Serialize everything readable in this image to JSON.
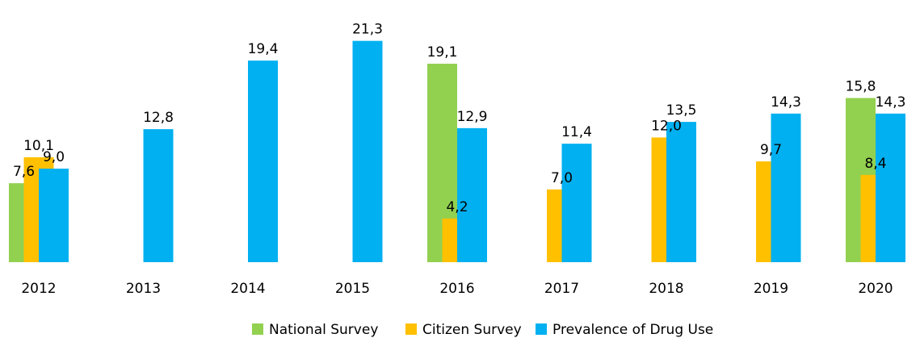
{
  "chart_data": {
    "type": "bar",
    "categories": [
      "2012",
      "2013",
      "2014",
      "2015",
      "2016",
      "2017",
      "2018",
      "2019",
      "2020"
    ],
    "series": [
      {
        "name": "National Survey",
        "color": "#92d050",
        "values": [
          7.6,
          null,
          null,
          null,
          19.1,
          null,
          null,
          null,
          15.8
        ],
        "value_labels": [
          "7,6",
          null,
          null,
          null,
          "19,1",
          null,
          null,
          null,
          "15,8"
        ]
      },
      {
        "name": "Citizen Survey",
        "color": "#ffc000",
        "values": [
          10.1,
          null,
          null,
          null,
          4.2,
          7.0,
          12.0,
          9.7,
          8.4
        ],
        "value_labels": [
          "10,1",
          null,
          null,
          null,
          "4,2",
          "7,0",
          "12,0",
          "9,7",
          "8,4"
        ]
      },
      {
        "name": "Prevalence of Drug Use",
        "color": "#00b0f0",
        "values": [
          9.0,
          12.8,
          19.4,
          21.3,
          12.9,
          11.4,
          13.5,
          14.3,
          14.3
        ],
        "value_labels": [
          "9,0",
          "12,8",
          "19,4",
          "21,3",
          "12,9",
          "11,4",
          "13,5",
          "14,3",
          "14,3"
        ]
      }
    ],
    "ylim": [
      0,
      25
    ],
    "legend": "bottom"
  }
}
